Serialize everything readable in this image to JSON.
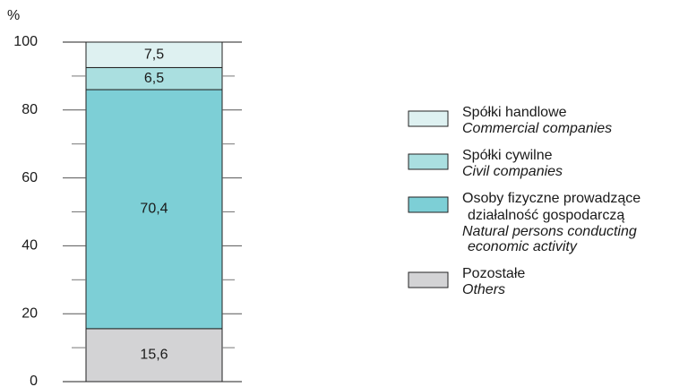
{
  "chart_data": {
    "type": "stacked_bar",
    "y_axis_label": "%",
    "ylim": [
      0,
      100
    ],
    "yticks": [
      0,
      20,
      40,
      60,
      80,
      100
    ],
    "minor_yticks": [
      10,
      30,
      50,
      70,
      90
    ],
    "series": [
      {
        "name": [
          "Pozostałe"
        ],
        "name_en": [
          "Others"
        ],
        "color": "#d3d3d5",
        "values": [
          15.6
        ],
        "value_labels": [
          "15,6"
        ]
      },
      {
        "name": [
          "Osoby fizyczne prowadzące",
          "działalność gospodarczą"
        ],
        "name_en": [
          "Natural persons conducting",
          "economic activity"
        ],
        "color": "#7dcfd6",
        "values": [
          70.4
        ],
        "value_labels": [
          "70,4"
        ]
      },
      {
        "name": [
          "Spółki cywilne"
        ],
        "name_en": [
          "Civil companies"
        ],
        "color": "#aadfe0",
        "values": [
          6.5
        ],
        "value_labels": [
          "6,5"
        ]
      },
      {
        "name": [
          "Spółki handlowe"
        ],
        "name_en": [
          "Commercial companies"
        ],
        "color": "#def1f1",
        "values": [
          7.5
        ],
        "value_labels": [
          "7,5"
        ]
      }
    ]
  }
}
